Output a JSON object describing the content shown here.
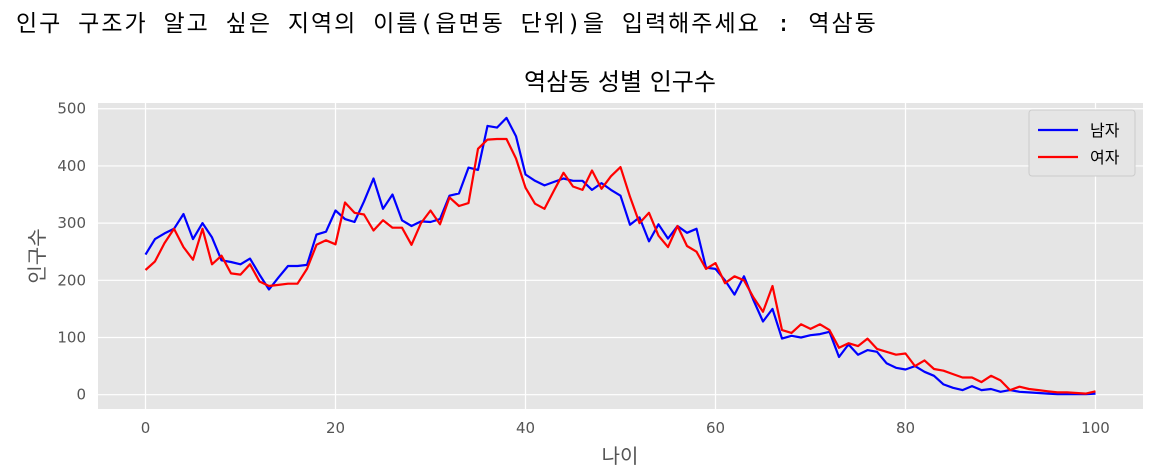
{
  "prompt": {
    "text": "인구 구조가 알고 싶은 지역의 이름(읍면동 단위)을 입력해주세요 : 역삼동"
  },
  "chart_data": {
    "type": "line",
    "title": "역삼동 성별 인구수",
    "xlabel": "나이",
    "ylabel": "인구수",
    "xlim": [
      -5,
      105
    ],
    "ylim": [
      -25,
      510
    ],
    "xticks": [
      0,
      20,
      40,
      60,
      80,
      100
    ],
    "yticks": [
      0,
      100,
      200,
      300,
      400,
      500
    ],
    "grid": true,
    "legend_position": "top-right",
    "x": [
      0,
      1,
      2,
      3,
      4,
      5,
      6,
      7,
      8,
      9,
      10,
      11,
      12,
      13,
      14,
      15,
      16,
      17,
      18,
      19,
      20,
      21,
      22,
      23,
      24,
      25,
      26,
      27,
      28,
      29,
      30,
      31,
      32,
      33,
      34,
      35,
      36,
      37,
      38,
      39,
      40,
      41,
      42,
      43,
      44,
      45,
      46,
      47,
      48,
      49,
      50,
      51,
      52,
      53,
      54,
      55,
      56,
      57,
      58,
      59,
      60,
      61,
      62,
      63,
      64,
      65,
      66,
      67,
      68,
      69,
      70,
      71,
      72,
      73,
      74,
      75,
      76,
      77,
      78,
      79,
      80,
      81,
      82,
      83,
      84,
      85,
      86,
      87,
      88,
      89,
      90,
      91,
      92,
      93,
      94,
      95,
      96,
      97,
      98,
      99,
      100
    ],
    "series": [
      {
        "name": "남자",
        "color": "#0000ff",
        "values": [
          245,
          272,
          282,
          290,
          316,
          272,
          300,
          275,
          235,
          232,
          228,
          238,
          210,
          184,
          205,
          225,
          225,
          227,
          280,
          285,
          322,
          307,
          302,
          338,
          378,
          325,
          350,
          305,
          295,
          303,
          302,
          307,
          348,
          352,
          397,
          393,
          470,
          467,
          484,
          452,
          385,
          374,
          366,
          372,
          378,
          374,
          374,
          358,
          370,
          358,
          348,
          297,
          310,
          268,
          298,
          273,
          295,
          283,
          290,
          222,
          220,
          200,
          175,
          207,
          165,
          128,
          150,
          98,
          103,
          100,
          104,
          106,
          110,
          66,
          88,
          70,
          78,
          75,
          55,
          47,
          44,
          50,
          40,
          33,
          18,
          12,
          8,
          15,
          8,
          10,
          5,
          8,
          5,
          4,
          3,
          2,
          1,
          1,
          1,
          1,
          2
        ]
      },
      {
        "name": "여자",
        "color": "#ff0000",
        "values": [
          218,
          233,
          265,
          290,
          258,
          236,
          290,
          228,
          243,
          212,
          210,
          228,
          198,
          190,
          192,
          194,
          194,
          220,
          262,
          270,
          263,
          336,
          318,
          315,
          287,
          305,
          292,
          292,
          262,
          300,
          322,
          298,
          345,
          330,
          335,
          430,
          446,
          447,
          447,
          413,
          362,
          334,
          325,
          357,
          388,
          364,
          358,
          392,
          360,
          382,
          398,
          346,
          300,
          318,
          278,
          258,
          295,
          260,
          250,
          220,
          230,
          195,
          207,
          200,
          170,
          145,
          190,
          113,
          108,
          123,
          115,
          123,
          113,
          82,
          90,
          85,
          98,
          80,
          75,
          70,
          72,
          50,
          60,
          45,
          42,
          36,
          30,
          30,
          22,
          33,
          25,
          8,
          14,
          10,
          8,
          6,
          4,
          4,
          3,
          2,
          6
        ]
      }
    ]
  }
}
